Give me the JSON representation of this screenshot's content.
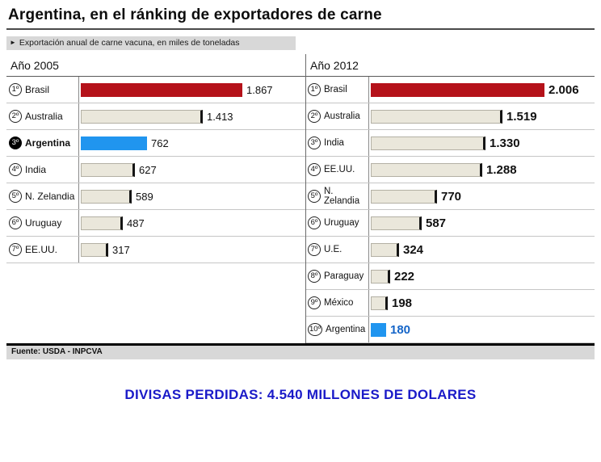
{
  "header": {
    "title": "Argentina, en el ránking de exportadores de carne",
    "subtitle_marker": "►",
    "subtitle": "Exportación anual de carne vacuna, en miles de toneladas"
  },
  "source": "Fuente: USDA - INPCVA",
  "footer": {
    "note": "DIVISAS PERDIDAS: 4.540 MILLONES DE DOLARES"
  },
  "colors": {
    "bar_red": "#b5121a",
    "bar_beige": "#eae7db",
    "bar_blue": "#2095ef",
    "value_blue": "#1565c8",
    "note_blue": "#1a1ac8"
  },
  "chart_data": [
    {
      "type": "bar",
      "title": "Año 2005",
      "unit": "miles de toneladas",
      "legend_position": "none",
      "grid": false,
      "value_range": [
        0,
        2006
      ],
      "ranks": [
        "1º",
        "2º",
        "3º",
        "4º",
        "5º",
        "6º",
        "7º"
      ],
      "categories": [
        "Brasil",
        "Australia",
        "Argentina",
        "India",
        "N. Zelandia",
        "Uruguay",
        "EE.UU."
      ],
      "values": [
        1867,
        1413,
        762,
        627,
        589,
        487,
        317
      ],
      "value_labels": [
        "1.867",
        "1.413",
        "762",
        "627",
        "589",
        "487",
        "317"
      ],
      "bar_colors": [
        "red",
        "beige",
        "blue",
        "beige",
        "beige",
        "beige",
        "beige"
      ],
      "highlight_category": "Argentina"
    },
    {
      "type": "bar",
      "title": "Año 2012",
      "unit": "miles de toneladas",
      "legend_position": "none",
      "grid": false,
      "value_range": [
        0,
        2006
      ],
      "ranks": [
        "1º",
        "2º",
        "3º",
        "4º",
        "5º",
        "6º",
        "7º",
        "8º",
        "9º",
        "10º"
      ],
      "categories": [
        "Brasil",
        "Australia",
        "India",
        "EE.UU.",
        "N. Zelandia",
        "Uruguay",
        "U.E.",
        "Paraguay",
        "México",
        "Argentina"
      ],
      "values": [
        2006,
        1519,
        1330,
        1288,
        770,
        587,
        324,
        222,
        198,
        180
      ],
      "value_labels": [
        "2.006",
        "1.519",
        "1.330",
        "1.288",
        "770",
        "587",
        "324",
        "222",
        "198",
        "180"
      ],
      "bar_colors": [
        "red",
        "beige",
        "beige",
        "beige",
        "beige",
        "beige",
        "beige",
        "beige",
        "beige",
        "blue"
      ],
      "highlight_category": "Argentina"
    }
  ]
}
